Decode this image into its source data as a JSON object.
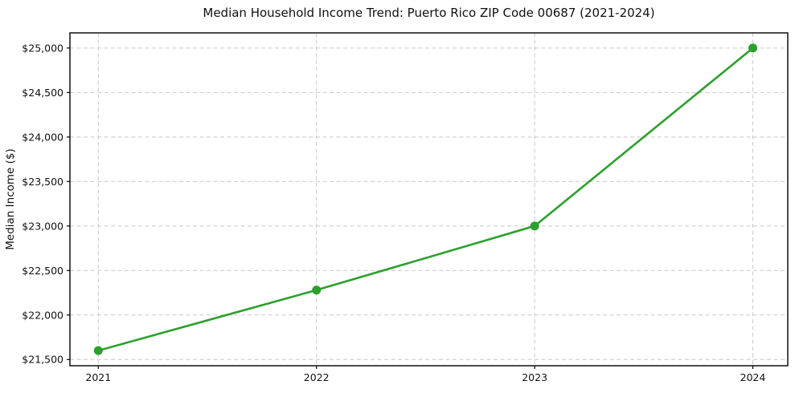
{
  "chart_data": {
    "type": "line",
    "title": "Median Household Income Trend: Puerto Rico ZIP Code 00687 (2021-2024)",
    "xlabel": "",
    "ylabel": "Median Income ($)",
    "x": [
      2021,
      2022,
      2023,
      2024
    ],
    "x_tick_labels": [
      "2021",
      "2022",
      "2023",
      "2024"
    ],
    "series": [
      {
        "name": "Median Household Income",
        "values": [
          21600,
          22280,
          23000,
          25000
        ]
      }
    ],
    "y_ticks": [
      21500,
      22000,
      22500,
      23000,
      23500,
      24000,
      24500,
      25000
    ],
    "y_tick_labels": [
      "$21,500",
      "$22,000",
      "$22,500",
      "$23,000",
      "$23,500",
      "$24,000",
      "$24,500",
      "$25,000"
    ],
    "xlim": [
      2020.87,
      2024.16
    ],
    "ylim": [
      21430,
      25170
    ],
    "grid": true,
    "grid_style": "dashed",
    "legend": false,
    "colors": {
      "line": "#2ca02c",
      "marker": "#2ca02c",
      "grid": "#c9c9c9",
      "spine": "#000000",
      "text": "#111111",
      "background": "#ffffff"
    }
  }
}
